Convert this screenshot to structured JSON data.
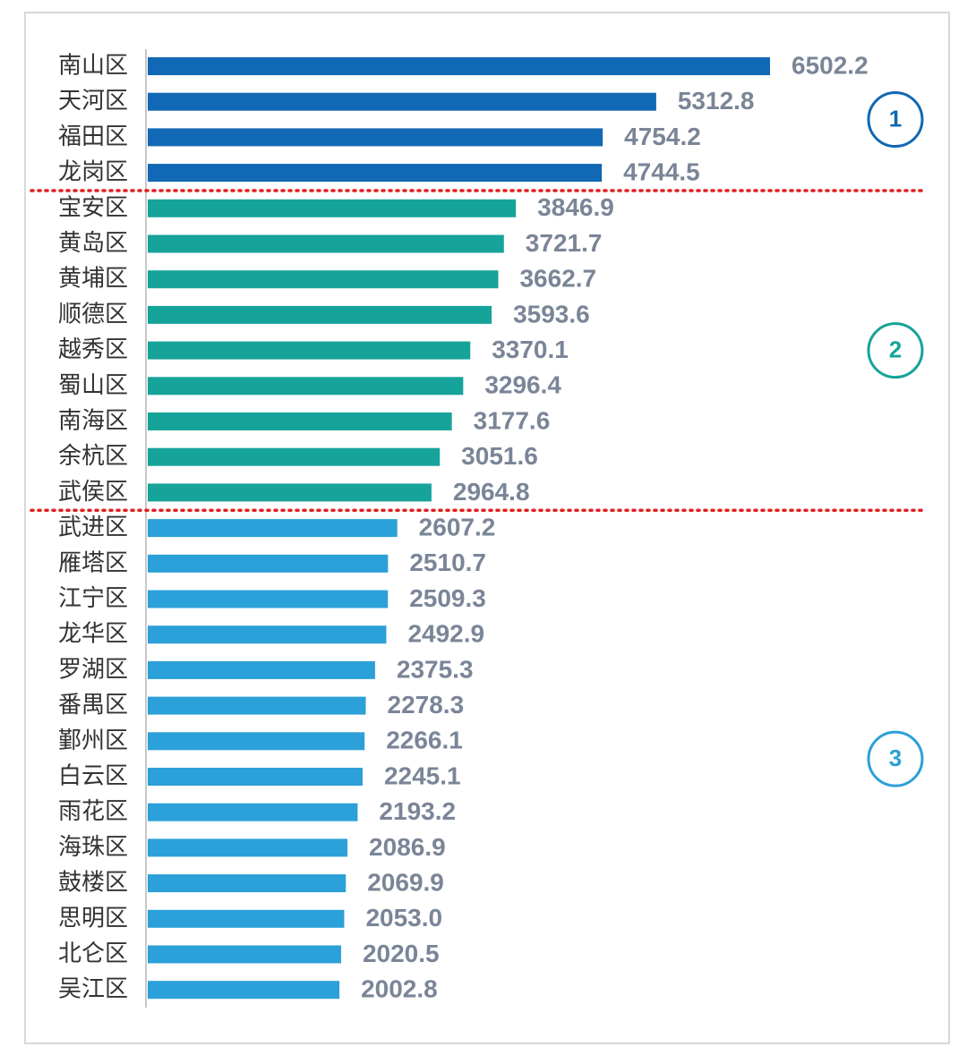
{
  "chart_data": {
    "type": "bar",
    "orientation": "horizontal",
    "series": [
      {
        "name": "1",
        "color": "#1168b4",
        "categories": [
          "南山区",
          "天河区",
          "福田区",
          "龙岗区"
        ],
        "values": [
          6502.2,
          5312.8,
          4754.2,
          4744.5
        ]
      },
      {
        "name": "2",
        "color": "#16a39a",
        "categories": [
          "宝安区",
          "黄岛区",
          "黄埔区",
          "顺德区",
          "越秀区",
          "蜀山区",
          "南海区",
          "余杭区",
          "武侯区"
        ],
        "values": [
          3846.9,
          3721.7,
          3662.7,
          3593.6,
          3370.1,
          3296.4,
          3177.6,
          3051.6,
          2964.8
        ]
      },
      {
        "name": "3",
        "color": "#2ca0d8",
        "categories": [
          "武进区",
          "雁塔区",
          "江宁区",
          "龙华区",
          "罗湖区",
          "番禺区",
          "鄞州区",
          "白云区",
          "雨花区",
          "海珠区",
          "鼓楼区",
          "思明区",
          "北仑区",
          "吴江区"
        ],
        "values": [
          2607.2,
          2510.7,
          2509.3,
          2492.9,
          2375.3,
          2278.3,
          2266.1,
          2245.1,
          2193.2,
          2086.9,
          2069.9,
          2053.0,
          2020.5,
          2002.8
        ],
        "value_labels": [
          "2607.2",
          "2510.7",
          "2509.3",
          "2492.9",
          "2375.3",
          "2278.3",
          "2266.1",
          "2245.1",
          "2193.2",
          "2086.9",
          "2069.9",
          "2053.0",
          "2020.5",
          "2002.8"
        ]
      }
    ],
    "divider_color": "#e0201f"
  }
}
